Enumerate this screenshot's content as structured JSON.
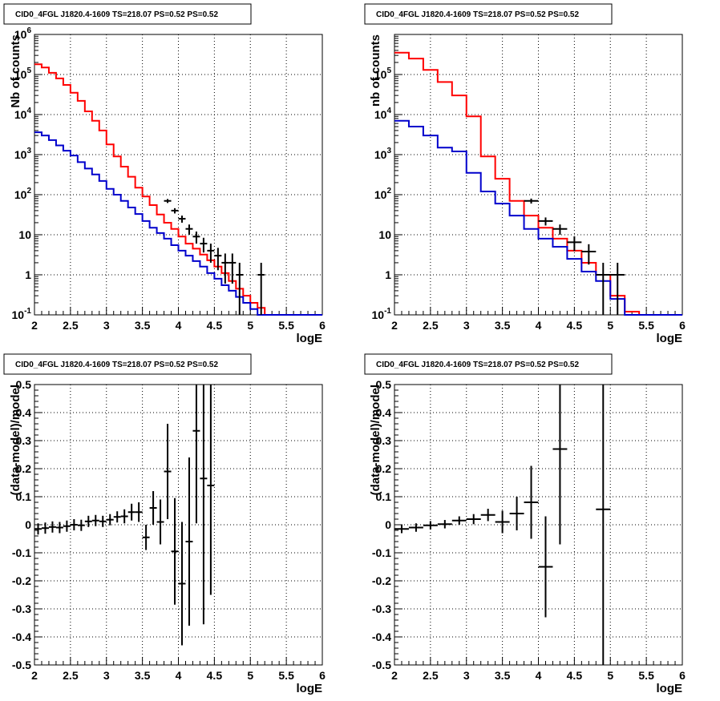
{
  "colors": {
    "data": "#000000",
    "model_total": "#ff0000",
    "model_component": "#0000cc"
  },
  "chart_data": [
    {
      "type": "step",
      "title": "CID0_4FGL J1820.4-1609 TS=218.07 PS=0.52 PS=0.52",
      "xlabel": "logE",
      "ylabel": "Nb of counts",
      "xlim": [
        2,
        6
      ],
      "ylim": [
        0.1,
        1000000
      ],
      "yscale": "log",
      "grid": true,
      "x_ticks": [
        "2",
        "2.5",
        "3",
        "3.5",
        "4",
        "4.5",
        "5",
        "5.5",
        "6"
      ],
      "y_ticks": [
        "10^-1",
        "1",
        "10",
        "10^2",
        "10^3",
        "10^4",
        "10^5",
        "10^6"
      ],
      "bin_width": 0.1,
      "series": [
        {
          "color": "red",
          "bin_left": [
            2.0,
            2.1,
            2.2,
            2.3,
            2.4,
            2.5,
            2.6,
            2.7,
            2.8,
            2.9,
            3.0,
            3.1,
            3.2,
            3.3,
            3.4,
            3.5,
            3.6,
            3.7,
            3.8,
            3.9,
            4.0,
            4.1,
            4.2,
            4.3,
            4.4,
            4.5,
            4.6,
            4.7,
            4.8,
            4.9,
            5.0,
            5.1,
            5.2,
            5.3,
            5.4,
            5.5,
            5.6,
            5.7,
            5.8,
            5.9
          ],
          "values": [
            180000,
            150000,
            110000,
            80000,
            55000,
            35000,
            22000,
            12000,
            7000,
            4000,
            1800,
            900,
            500,
            280,
            150,
            90,
            55,
            32,
            20,
            14,
            9,
            6,
            4.5,
            3.2,
            2.3,
            1.6,
            1.1,
            0.7,
            0.45,
            0.3,
            0.2,
            0.15,
            0.1,
            0.1,
            0.1,
            0.1,
            0.1,
            0.1,
            0.1,
            0.1
          ]
        },
        {
          "color": "blue",
          "bin_left": [
            2.0,
            2.1,
            2.2,
            2.3,
            2.4,
            2.5,
            2.6,
            2.7,
            2.8,
            2.9,
            3.0,
            3.1,
            3.2,
            3.3,
            3.4,
            3.5,
            3.6,
            3.7,
            3.8,
            3.9,
            4.0,
            4.1,
            4.2,
            4.3,
            4.4,
            4.5,
            4.6,
            4.7,
            4.8,
            4.9,
            5.0,
            5.1,
            5.2,
            5.3,
            5.4,
            5.5,
            5.6,
            5.7,
            5.8,
            5.9
          ],
          "values": [
            3600,
            3000,
            2300,
            1700,
            1250,
            950,
            650,
            450,
            320,
            220,
            140,
            100,
            70,
            48,
            33,
            22,
            15,
            11,
            8,
            5.5,
            4,
            3,
            2.2,
            1.6,
            1.1,
            0.8,
            0.55,
            0.4,
            0.28,
            0.2,
            0.14,
            0.1,
            0.1,
            0.1,
            0.1,
            0.1,
            0.1,
            0.1,
            0.1,
            0.1
          ]
        }
      ],
      "points": [
        {
          "x": 3.85,
          "y": 70,
          "yerr_lo": 8,
          "yerr_hi": 8,
          "xerr": 0.05
        },
        {
          "x": 3.95,
          "y": 40,
          "yerr_lo": 6,
          "yerr_hi": 6,
          "xerr": 0.05
        },
        {
          "x": 4.05,
          "y": 25,
          "yerr_lo": 5,
          "yerr_hi": 5,
          "xerr": 0.05
        },
        {
          "x": 4.15,
          "y": 14,
          "yerr_lo": 4,
          "yerr_hi": 4,
          "xerr": 0.05
        },
        {
          "x": 4.25,
          "y": 9,
          "yerr_lo": 3,
          "yerr_hi": 3,
          "xerr": 0.05
        },
        {
          "x": 4.35,
          "y": 6,
          "yerr_lo": 2.4,
          "yerr_hi": 2.4,
          "xerr": 0.05
        },
        {
          "x": 4.45,
          "y": 4,
          "yerr_lo": 2,
          "yerr_hi": 2,
          "xerr": 0.05
        },
        {
          "x": 4.55,
          "y": 3,
          "yerr_lo": 1.7,
          "yerr_hi": 1.7,
          "xerr": 0.05
        },
        {
          "x": 4.65,
          "y": 2,
          "yerr_lo": 1.4,
          "yerr_hi": 1.4,
          "xerr": 0.05
        },
        {
          "x": 4.75,
          "y": 2,
          "yerr_lo": 1.4,
          "yerr_hi": 1.4,
          "xerr": 0.05
        },
        {
          "x": 4.85,
          "y": 1,
          "yerr_lo": 0.9,
          "yerr_hi": 1,
          "xerr": 0.05
        },
        {
          "x": 5.15,
          "y": 1,
          "yerr_lo": 0.9,
          "yerr_hi": 1,
          "xerr": 0.05
        }
      ]
    },
    {
      "type": "step",
      "title": "CID0_4FGL J1820.4-1609 TS=218.07 PS=0.52 PS=0.52",
      "xlabel": "logE",
      "ylabel": "nb of counts",
      "xlim": [
        2,
        6
      ],
      "ylim": [
        0.1,
        1000000
      ],
      "yscale": "log",
      "grid": true,
      "x_ticks": [
        "2",
        "2.5",
        "3",
        "3.5",
        "4",
        "4.5",
        "5",
        "5.5",
        "6"
      ],
      "y_ticks": [
        "10^-1",
        "1",
        "10",
        "10^2",
        "10^3",
        "10^4",
        "10^5"
      ],
      "bin_width": 0.2,
      "series": [
        {
          "color": "red",
          "bin_left": [
            2.0,
            2.2,
            2.4,
            2.6,
            2.8,
            3.0,
            3.2,
            3.4,
            3.6,
            3.8,
            4.0,
            4.2,
            4.4,
            4.6,
            4.8,
            5.0,
            5.2,
            5.4,
            5.6,
            5.8
          ],
          "values": [
            350000,
            250000,
            130000,
            65000,
            30000,
            9000,
            900,
            250,
            70,
            30,
            15,
            8,
            4,
            2,
            1,
            0.3,
            0.12,
            0.1,
            0.1,
            0.1
          ]
        },
        {
          "color": "blue",
          "bin_left": [
            2.0,
            2.2,
            2.4,
            2.6,
            2.8,
            3.0,
            3.2,
            3.4,
            3.6,
            3.8,
            4.0,
            4.2,
            4.4,
            4.6,
            4.8,
            5.0,
            5.2,
            5.4,
            5.6,
            5.8
          ],
          "values": [
            7000,
            5000,
            3000,
            1500,
            1200,
            350,
            120,
            60,
            30,
            14,
            8,
            5,
            2.5,
            1.2,
            0.7,
            0.25,
            0.1,
            0.1,
            0.1,
            0.1
          ]
        }
      ],
      "points": [
        {
          "x": 3.9,
          "y": 70,
          "yerr_lo": 10,
          "yerr_hi": 10,
          "xerr": 0.1
        },
        {
          "x": 4.1,
          "y": 22,
          "yerr_lo": 5,
          "yerr_hi": 5,
          "xerr": 0.1
        },
        {
          "x": 4.3,
          "y": 14,
          "yerr_lo": 4,
          "yerr_hi": 4,
          "xerr": 0.1
        },
        {
          "x": 4.5,
          "y": 6.5,
          "yerr_lo": 2.6,
          "yerr_hi": 2.6,
          "xerr": 0.1
        },
        {
          "x": 4.7,
          "y": 3.8,
          "yerr_lo": 2,
          "yerr_hi": 2,
          "xerr": 0.1
        },
        {
          "x": 4.9,
          "y": 1,
          "yerr_lo": 0.9,
          "yerr_hi": 1,
          "xerr": 0.1
        },
        {
          "x": 5.1,
          "y": 1,
          "yerr_lo": 0.9,
          "yerr_hi": 1,
          "xerr": 0.1
        }
      ]
    },
    {
      "type": "scatter",
      "title": "CID0_4FGL J1820.4-1609 TS=218.07 PS=0.52 PS=0.52",
      "xlabel": "logE",
      "ylabel": "(data-model)/model",
      "xlim": [
        2,
        6
      ],
      "ylim": [
        -0.5,
        0.5
      ],
      "yscale": "linear",
      "grid": true,
      "x_ticks": [
        "2",
        "2.5",
        "3",
        "3.5",
        "4",
        "4.5",
        "5",
        "5.5",
        "6"
      ],
      "y_ticks": [
        "-0.5",
        "-0.4",
        "-0.3",
        "-0.2",
        "-0.1",
        "0",
        "0.1",
        "0.2",
        "0.3",
        "0.4",
        "0.5"
      ],
      "points": [
        {
          "x": 2.05,
          "y": -0.015,
          "yerr": 0.02,
          "xerr": 0.05
        },
        {
          "x": 2.15,
          "y": -0.012,
          "yerr": 0.02,
          "xerr": 0.05
        },
        {
          "x": 2.25,
          "y": -0.008,
          "yerr": 0.02,
          "xerr": 0.05
        },
        {
          "x": 2.35,
          "y": -0.01,
          "yerr": 0.02,
          "xerr": 0.05
        },
        {
          "x": 2.45,
          "y": -0.005,
          "yerr": 0.02,
          "xerr": 0.05
        },
        {
          "x": 2.55,
          "y": 0.0,
          "yerr": 0.02,
          "xerr": 0.05
        },
        {
          "x": 2.65,
          "y": -0.002,
          "yerr": 0.02,
          "xerr": 0.05
        },
        {
          "x": 2.75,
          "y": 0.012,
          "yerr": 0.02,
          "xerr": 0.05
        },
        {
          "x": 2.85,
          "y": 0.015,
          "yerr": 0.02,
          "xerr": 0.05
        },
        {
          "x": 2.95,
          "y": 0.012,
          "yerr": 0.02,
          "xerr": 0.05
        },
        {
          "x": 3.05,
          "y": 0.018,
          "yerr": 0.02,
          "xerr": 0.05
        },
        {
          "x": 3.15,
          "y": 0.028,
          "yerr": 0.02,
          "xerr": 0.05
        },
        {
          "x": 3.25,
          "y": 0.03,
          "yerr": 0.025,
          "xerr": 0.05
        },
        {
          "x": 3.35,
          "y": 0.045,
          "yerr": 0.03,
          "xerr": 0.05
        },
        {
          "x": 3.45,
          "y": 0.045,
          "yerr": 0.035,
          "xerr": 0.05
        },
        {
          "x": 3.55,
          "y": -0.045,
          "yerr": 0.045,
          "xerr": 0.05
        },
        {
          "x": 3.65,
          "y": 0.06,
          "yerr": 0.06,
          "xerr": 0.05
        },
        {
          "x": 3.75,
          "y": 0.01,
          "yerr": 0.08,
          "xerr": 0.05
        },
        {
          "x": 3.85,
          "y": 0.19,
          "yerr": 0.17,
          "xerr": 0.05
        },
        {
          "x": 3.95,
          "y": -0.095,
          "yerr": 0.19,
          "xerr": 0.05
        },
        {
          "x": 4.05,
          "y": -0.21,
          "yerr": 0.22,
          "xerr": 0.05
        },
        {
          "x": 4.15,
          "y": -0.06,
          "yerr": 0.3,
          "xerr": 0.05
        },
        {
          "x": 4.25,
          "y": 0.335,
          "yerr": 0.33,
          "xerr": 0.05
        },
        {
          "x": 4.35,
          "y": 0.165,
          "yerr": 0.52,
          "xerr": 0.05
        },
        {
          "x": 4.45,
          "y": 0.14,
          "yerr": 0.39,
          "xerr": 0.05
        }
      ]
    },
    {
      "type": "scatter",
      "title": "CID0_4FGL J1820.4-1609 TS=218.07 PS=0.52 PS=0.52",
      "xlabel": "logE",
      "ylabel": "(data-model)/model",
      "xlim": [
        2,
        6
      ],
      "ylim": [
        -0.5,
        0.5
      ],
      "yscale": "linear",
      "grid": true,
      "x_ticks": [
        "2",
        "2.5",
        "3",
        "3.5",
        "4",
        "4.5",
        "5",
        "5.5",
        "6"
      ],
      "y_ticks": [
        "-0.5",
        "-0.4",
        "-0.3",
        "-0.2",
        "-0.1",
        "0",
        "0.1",
        "0.2",
        "0.3",
        "0.4",
        "0.5"
      ],
      "points": [
        {
          "x": 2.1,
          "y": -0.015,
          "yerr": 0.015,
          "xerr": 0.1
        },
        {
          "x": 2.3,
          "y": -0.01,
          "yerr": 0.015,
          "xerr": 0.1
        },
        {
          "x": 2.5,
          "y": -0.002,
          "yerr": 0.015,
          "xerr": 0.1
        },
        {
          "x": 2.7,
          "y": 0.002,
          "yerr": 0.015,
          "xerr": 0.1
        },
        {
          "x": 2.9,
          "y": 0.015,
          "yerr": 0.015,
          "xerr": 0.1
        },
        {
          "x": 3.1,
          "y": 0.02,
          "yerr": 0.018,
          "xerr": 0.1
        },
        {
          "x": 3.3,
          "y": 0.035,
          "yerr": 0.022,
          "xerr": 0.1
        },
        {
          "x": 3.5,
          "y": 0.01,
          "yerr": 0.04,
          "xerr": 0.1
        },
        {
          "x": 3.7,
          "y": 0.04,
          "yerr": 0.06,
          "xerr": 0.1
        },
        {
          "x": 3.9,
          "y": 0.08,
          "yerr": 0.13,
          "xerr": 0.1
        },
        {
          "x": 4.1,
          "y": -0.15,
          "yerr": 0.18,
          "xerr": 0.1
        },
        {
          "x": 4.3,
          "y": 0.27,
          "yerr": 0.34,
          "xerr": 0.1
        },
        {
          "x": 4.9,
          "y": 0.055,
          "yerr": 0.6,
          "xerr": 0.1
        }
      ]
    }
  ]
}
